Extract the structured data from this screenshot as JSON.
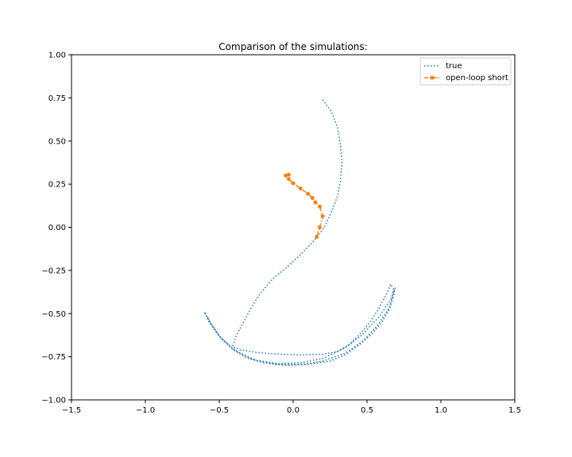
{
  "chart_data": {
    "type": "line",
    "title": "Comparison of the simulations:",
    "xlabel": "",
    "ylabel": "",
    "xlim": [
      -1.5,
      1.5
    ],
    "ylim": [
      -1.0,
      1.0
    ],
    "x_ticks": [
      -1.5,
      -1.0,
      -0.5,
      0.0,
      0.5,
      1.0,
      1.5
    ],
    "y_ticks": [
      -1.0,
      -0.75,
      -0.5,
      -0.25,
      0.0,
      0.25,
      0.5,
      0.75,
      1.0
    ],
    "x_tick_labels": [
      "−1.5",
      "−1.0",
      "−0.5",
      "0.0",
      "0.5",
      "1.0",
      "1.5"
    ],
    "y_tick_labels": [
      "−1.00",
      "−0.75",
      "−0.50",
      "−0.25",
      "0.00",
      "0.25",
      "0.50",
      "0.75",
      "1.00"
    ],
    "grid": false,
    "legend_position": "top-right",
    "series": [
      {
        "name": "true",
        "color": "#1f77b4",
        "line_style": "dotted",
        "marker": "none",
        "points": [
          [
            0.2,
            0.74
          ],
          [
            0.26,
            0.67
          ],
          [
            0.3,
            0.58
          ],
          [
            0.32,
            0.48
          ],
          [
            0.33,
            0.38
          ],
          [
            0.32,
            0.27
          ],
          [
            0.3,
            0.18
          ],
          [
            0.26,
            0.09
          ],
          [
            0.21,
            0.0
          ],
          [
            0.15,
            -0.07
          ],
          [
            0.06,
            -0.15
          ],
          [
            -0.04,
            -0.23
          ],
          [
            -0.14,
            -0.3
          ],
          [
            -0.22,
            -0.38
          ],
          [
            -0.28,
            -0.46
          ],
          [
            -0.33,
            -0.54
          ],
          [
            -0.38,
            -0.62
          ],
          [
            -0.41,
            -0.69
          ],
          [
            -0.36,
            -0.71
          ],
          [
            -0.25,
            -0.725
          ],
          [
            -0.1,
            -0.735
          ],
          [
            0.05,
            -0.74
          ],
          [
            0.2,
            -0.735
          ],
          [
            0.3,
            -0.72
          ],
          [
            0.38,
            -0.68
          ],
          [
            0.45,
            -0.62
          ],
          [
            0.52,
            -0.55
          ],
          [
            0.58,
            -0.47
          ],
          [
            0.63,
            -0.39
          ],
          [
            0.66,
            -0.33
          ],
          [
            0.68,
            -0.36
          ],
          [
            0.66,
            -0.46
          ],
          [
            0.6,
            -0.55
          ],
          [
            0.53,
            -0.62
          ],
          [
            0.45,
            -0.68
          ],
          [
            0.35,
            -0.74
          ],
          [
            0.25,
            -0.775
          ],
          [
            0.1,
            -0.795
          ],
          [
            -0.05,
            -0.8
          ],
          [
            -0.2,
            -0.785
          ],
          [
            -0.32,
            -0.755
          ],
          [
            -0.42,
            -0.7
          ],
          [
            -0.5,
            -0.63
          ],
          [
            -0.56,
            -0.55
          ],
          [
            -0.6,
            -0.49
          ],
          [
            -0.57,
            -0.55
          ],
          [
            -0.5,
            -0.63
          ],
          [
            -0.4,
            -0.71
          ],
          [
            -0.28,
            -0.765
          ],
          [
            -0.12,
            -0.795
          ],
          [
            0.05,
            -0.795
          ],
          [
            0.2,
            -0.775
          ],
          [
            0.35,
            -0.73
          ],
          [
            0.47,
            -0.66
          ],
          [
            0.57,
            -0.57
          ],
          [
            0.64,
            -0.48
          ],
          [
            0.68,
            -0.4
          ],
          [
            0.69,
            -0.35
          ],
          [
            0.66,
            -0.42
          ],
          [
            0.58,
            -0.52
          ],
          [
            0.47,
            -0.62
          ],
          [
            0.35,
            -0.7
          ],
          [
            0.2,
            -0.76
          ],
          [
            0.05,
            -0.785
          ],
          [
            -0.1,
            -0.79
          ],
          [
            -0.25,
            -0.77
          ],
          [
            -0.38,
            -0.72
          ],
          [
            -0.48,
            -0.65
          ],
          [
            -0.55,
            -0.57
          ],
          [
            -0.58,
            -0.52
          ]
        ]
      },
      {
        "name": "open-loop short",
        "color": "#ff7f0e",
        "line_style": "dashdot",
        "marker": "dot",
        "points": [
          [
            -0.05,
            0.3
          ],
          [
            -0.03,
            0.305
          ],
          [
            -0.03,
            0.28
          ],
          [
            0.0,
            0.255
          ],
          [
            0.05,
            0.225
          ],
          [
            0.1,
            0.195
          ],
          [
            0.13,
            0.17
          ],
          [
            0.15,
            0.145
          ],
          [
            0.18,
            0.12
          ],
          [
            0.2,
            0.065
          ],
          [
            0.18,
            0.0
          ],
          [
            0.16,
            -0.055
          ]
        ]
      }
    ]
  }
}
